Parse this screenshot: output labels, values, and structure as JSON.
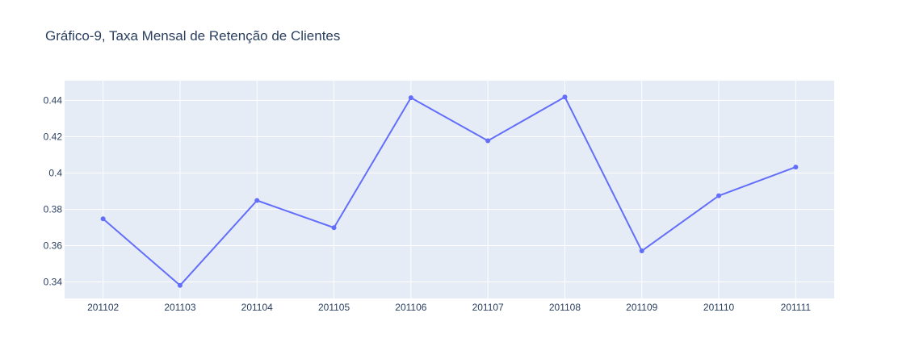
{
  "chart_data": {
    "type": "line",
    "title": "Gráfico-9, Taxa Mensal de Retenção de Clientes",
    "xlabel": "",
    "ylabel": "",
    "categories": [
      "201102",
      "201103",
      "201104",
      "201105",
      "201106",
      "201107",
      "201108",
      "201109",
      "201110",
      "201111"
    ],
    "series": [
      {
        "values": [
          0.3748,
          0.3381,
          0.3849,
          0.3699,
          0.4415,
          0.4178,
          0.4419,
          0.3571,
          0.3875,
          0.4033
        ]
      }
    ],
    "y_ticks": [
      "0.34",
      "0.36",
      "0.38",
      "0.4",
      "0.42",
      "0.44"
    ],
    "y_tick_values": [
      0.34,
      0.36,
      0.38,
      0.4,
      0.42,
      0.44
    ],
    "ylim": [
      0.3309,
      0.4509
    ],
    "grid": true,
    "legend": "none",
    "colors": {
      "line": "#636efa",
      "plot_background": "#e5ecf6",
      "grid": "#ffffff",
      "text": "#2a3f5f"
    }
  }
}
